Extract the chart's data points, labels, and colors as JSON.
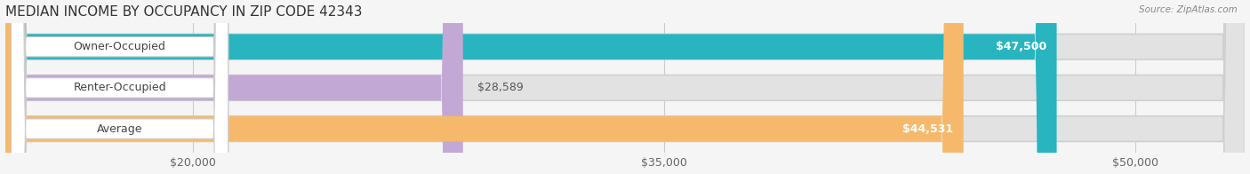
{
  "title": "MEDIAN INCOME BY OCCUPANCY IN ZIP CODE 42343",
  "source": "Source: ZipAtlas.com",
  "categories": [
    "Owner-Occupied",
    "Renter-Occupied",
    "Average"
  ],
  "values": [
    47500,
    28589,
    44531
  ],
  "labels": [
    "$47,500",
    "$28,589",
    "$44,531"
  ],
  "bar_colors": [
    "#29b5c0",
    "#c2a8d4",
    "#f6b96b"
  ],
  "background_color": "#f5f5f5",
  "bar_bg_color": "#e2e2e2",
  "xmin": 14000,
  "xmax": 53500,
  "xticks": [
    20000,
    35000,
    50000
  ],
  "xtick_labels": [
    "$20,000",
    "$35,000",
    "$50,000"
  ],
  "title_fontsize": 11,
  "label_fontsize": 9,
  "bar_height": 0.62,
  "label_value_inside_threshold": 0.7
}
